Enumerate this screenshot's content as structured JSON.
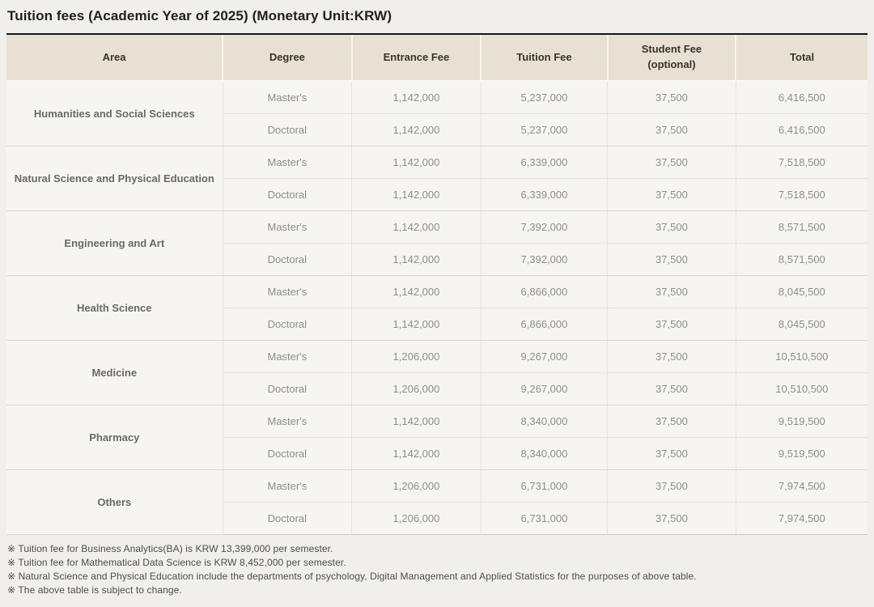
{
  "title": "Tuition fees (Academic Year of 2025) (Monetary Unit:KRW)",
  "table": {
    "headers": {
      "area": "Area",
      "degree": "Degree",
      "entrance_fee": "Entrance Fee",
      "tuition_fee": "Tuition Fee",
      "student_fee_line1": "Student Fee",
      "student_fee_line2": "(optional)",
      "total": "Total"
    },
    "groups": [
      {
        "area": "Humanities and Social Sciences",
        "rows": [
          {
            "degree": "Master's",
            "entrance_fee": "1,142,000",
            "tuition_fee": "5,237,000",
            "student_fee": "37,500",
            "total": "6,416,500"
          },
          {
            "degree": "Doctoral",
            "entrance_fee": "1,142,000",
            "tuition_fee": "5,237,000",
            "student_fee": "37,500",
            "total": "6,416,500"
          }
        ]
      },
      {
        "area": "Natural Science and Physical Education",
        "rows": [
          {
            "degree": "Master's",
            "entrance_fee": "1,142,000",
            "tuition_fee": "6,339,000",
            "student_fee": "37,500",
            "total": "7,518,500"
          },
          {
            "degree": "Doctoral",
            "entrance_fee": "1,142,000",
            "tuition_fee": "6,339,000",
            "student_fee": "37,500",
            "total": "7,518,500"
          }
        ]
      },
      {
        "area": "Engineering and Art",
        "rows": [
          {
            "degree": "Master's",
            "entrance_fee": "1,142,000",
            "tuition_fee": "7,392,000",
            "student_fee": "37,500",
            "total": "8,571,500"
          },
          {
            "degree": "Doctoral",
            "entrance_fee": "1,142,000",
            "tuition_fee": "7,392,000",
            "student_fee": "37,500",
            "total": "8,571,500"
          }
        ]
      },
      {
        "area": "Health Science",
        "rows": [
          {
            "degree": "Master's",
            "entrance_fee": "1,142,000",
            "tuition_fee": "6,866,000",
            "student_fee": "37,500",
            "total": "8,045,500"
          },
          {
            "degree": "Doctoral",
            "entrance_fee": "1,142,000",
            "tuition_fee": "6,866,000",
            "student_fee": "37,500",
            "total": "8,045,500"
          }
        ]
      },
      {
        "area": "Medicine",
        "rows": [
          {
            "degree": "Master's",
            "entrance_fee": "1,206,000",
            "tuition_fee": "9,267,000",
            "student_fee": "37,500",
            "total": "10,510,500"
          },
          {
            "degree": "Doctoral",
            "entrance_fee": "1,206,000",
            "tuition_fee": "9,267,000",
            "student_fee": "37,500",
            "total": "10,510,500"
          }
        ]
      },
      {
        "area": "Pharmacy",
        "rows": [
          {
            "degree": "Master's",
            "entrance_fee": "1,142,000",
            "tuition_fee": "8,340,000",
            "student_fee": "37,500",
            "total": "9,519,500"
          },
          {
            "degree": "Doctoral",
            "entrance_fee": "1,142,000",
            "tuition_fee": "8,340,000",
            "student_fee": "37,500",
            "total": "9,519,500"
          }
        ]
      },
      {
        "area": "Others",
        "rows": [
          {
            "degree": "Master's",
            "entrance_fee": "1,206,000",
            "tuition_fee": "6,731,000",
            "student_fee": "37,500",
            "total": "7,974,500"
          },
          {
            "degree": "Doctoral",
            "entrance_fee": "1,206,000",
            "tuition_fee": "6,731,000",
            "student_fee": "37,500",
            "total": "7,974,500"
          }
        ]
      }
    ]
  },
  "notes": [
    "※ Tuition fee for Business Analytics(BA) is KRW 13,399,000 per semester.",
    "※ Tuition fee for Mathematical Data Science is KRW 8,452,000 per semester.",
    "※ Natural Science and Physical Education include the departments of psychology, Digital Management and Applied Statistics for the purposes of above table.",
    "※ The above table is subject to change."
  ]
}
